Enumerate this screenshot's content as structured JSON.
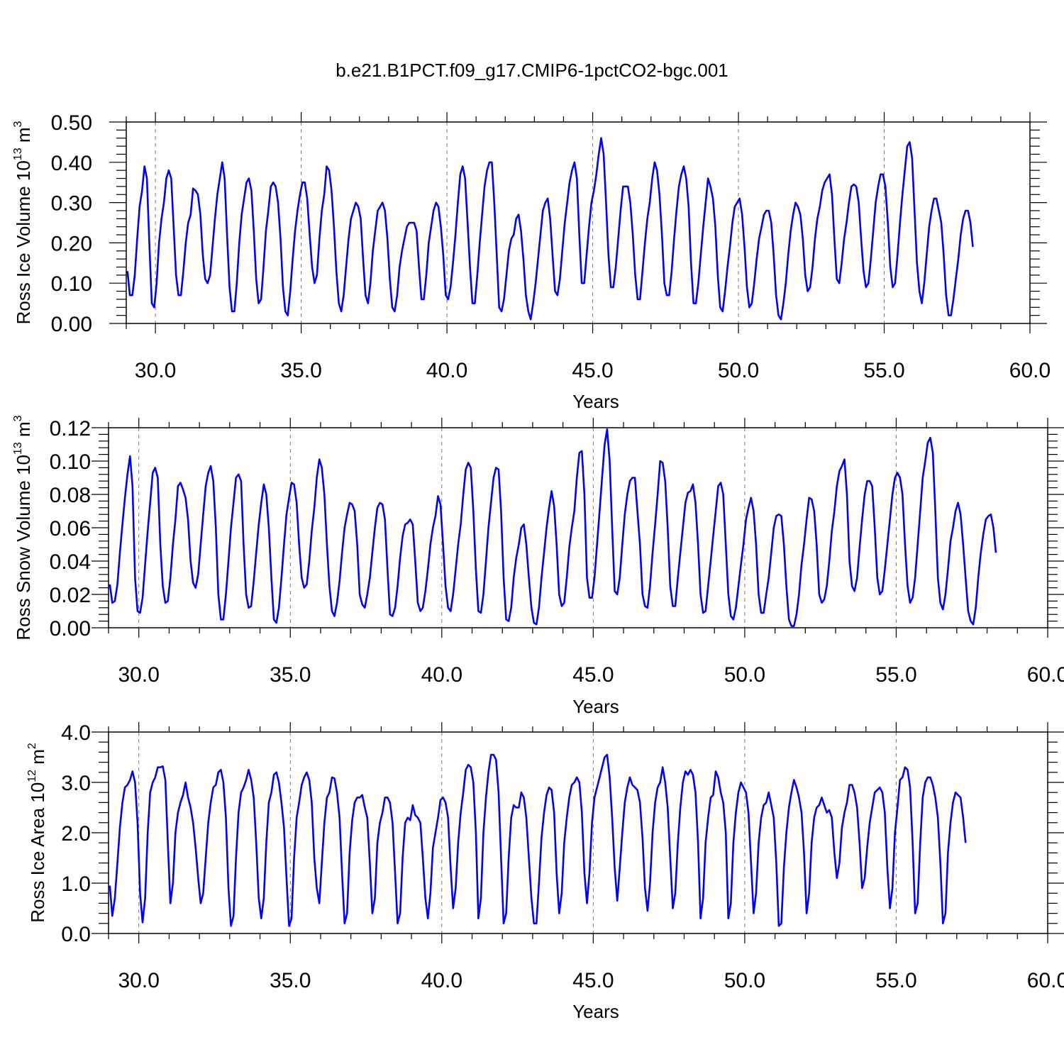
{
  "title": "b.e21.B1PCT.f09_g17.CMIP6-1pctCO2-bgc.001",
  "colors": {
    "series": "#0000ff",
    "vline": "#777777"
  },
  "chart_data": [
    {
      "type": "line",
      "xlabel": "Years",
      "ylabel": {
        "main": "Ross Ice Volume 10",
        "sup": "13",
        "tail": " m",
        "sup2": "3"
      },
      "xlim": [
        29.0,
        60.0
      ],
      "ylim": [
        0.0,
        0.5
      ],
      "xticks": [
        "30.0",
        "35.0",
        "40.0",
        "45.0",
        "50.0",
        "55.0",
        "60.0"
      ],
      "xtick_values": [
        30,
        35,
        40,
        45,
        50,
        55,
        60
      ],
      "yticks": [
        "0.00",
        "0.10",
        "0.20",
        "0.30",
        "0.40",
        "0.50"
      ],
      "ytick_values": [
        0.0,
        0.1,
        0.2,
        0.3,
        0.4,
        0.5
      ],
      "dashed_vlines": [
        30,
        35,
        40,
        45,
        50,
        55
      ],
      "x_start": 29.0417,
      "x_step": 0.083333,
      "values": [
        0.13,
        0.07,
        0.07,
        0.12,
        0.21,
        0.29,
        0.33,
        0.39,
        0.36,
        0.2,
        0.05,
        0.04,
        0.1,
        0.2,
        0.26,
        0.3,
        0.36,
        0.38,
        0.36,
        0.24,
        0.12,
        0.07,
        0.07,
        0.13,
        0.2,
        0.25,
        0.27,
        0.335,
        0.33,
        0.32,
        0.27,
        0.17,
        0.11,
        0.1,
        0.12,
        0.19,
        0.26,
        0.32,
        0.36,
        0.4,
        0.36,
        0.22,
        0.09,
        0.03,
        0.03,
        0.1,
        0.2,
        0.27,
        0.31,
        0.35,
        0.36,
        0.33,
        0.23,
        0.11,
        0.05,
        0.06,
        0.14,
        0.23,
        0.28,
        0.34,
        0.35,
        0.34,
        0.3,
        0.21,
        0.09,
        0.03,
        0.02,
        0.08,
        0.16,
        0.23,
        0.28,
        0.32,
        0.35,
        0.35,
        0.31,
        0.22,
        0.14,
        0.1,
        0.12,
        0.21,
        0.28,
        0.32,
        0.39,
        0.38,
        0.33,
        0.24,
        0.13,
        0.05,
        0.03,
        0.07,
        0.14,
        0.21,
        0.26,
        0.28,
        0.3,
        0.29,
        0.26,
        0.16,
        0.07,
        0.05,
        0.1,
        0.18,
        0.23,
        0.28,
        0.29,
        0.3,
        0.28,
        0.21,
        0.11,
        0.04,
        0.03,
        0.07,
        0.14,
        0.18,
        0.21,
        0.24,
        0.25,
        0.25,
        0.25,
        0.23,
        0.14,
        0.06,
        0.06,
        0.12,
        0.2,
        0.24,
        0.28,
        0.3,
        0.29,
        0.24,
        0.17,
        0.07,
        0.06,
        0.09,
        0.15,
        0.22,
        0.3,
        0.37,
        0.39,
        0.36,
        0.25,
        0.14,
        0.05,
        0.05,
        0.12,
        0.2,
        0.27,
        0.34,
        0.38,
        0.4,
        0.4,
        0.3,
        0.17,
        0.04,
        0.03,
        0.06,
        0.12,
        0.18,
        0.21,
        0.22,
        0.26,
        0.27,
        0.23,
        0.16,
        0.07,
        0.03,
        0.01,
        0.05,
        0.1,
        0.16,
        0.22,
        0.28,
        0.3,
        0.31,
        0.26,
        0.17,
        0.08,
        0.07,
        0.11,
        0.18,
        0.25,
        0.3,
        0.35,
        0.38,
        0.4,
        0.36,
        0.22,
        0.1,
        0.1,
        0.17,
        0.24,
        0.3,
        0.33,
        0.37,
        0.42,
        0.46,
        0.42,
        0.3,
        0.17,
        0.09,
        0.09,
        0.14,
        0.21,
        0.28,
        0.34,
        0.34,
        0.34,
        0.3,
        0.22,
        0.12,
        0.06,
        0.06,
        0.13,
        0.2,
        0.26,
        0.3,
        0.36,
        0.4,
        0.38,
        0.32,
        0.22,
        0.1,
        0.07,
        0.07,
        0.13,
        0.21,
        0.28,
        0.34,
        0.37,
        0.39,
        0.36,
        0.29,
        0.15,
        0.05,
        0.05,
        0.1,
        0.17,
        0.24,
        0.3,
        0.36,
        0.34,
        0.31,
        0.24,
        0.12,
        0.04,
        0.03,
        0.08,
        0.14,
        0.19,
        0.25,
        0.29,
        0.3,
        0.31,
        0.27,
        0.19,
        0.09,
        0.04,
        0.05,
        0.1,
        0.16,
        0.21,
        0.24,
        0.27,
        0.28,
        0.28,
        0.25,
        0.17,
        0.07,
        0.02,
        0.01,
        0.05,
        0.1,
        0.17,
        0.23,
        0.27,
        0.3,
        0.29,
        0.27,
        0.21,
        0.12,
        0.08,
        0.09,
        0.14,
        0.21,
        0.26,
        0.29,
        0.33,
        0.35,
        0.36,
        0.37,
        0.32,
        0.21,
        0.11,
        0.1,
        0.15,
        0.21,
        0.25,
        0.3,
        0.34,
        0.345,
        0.34,
        0.3,
        0.21,
        0.13,
        0.09,
        0.1,
        0.16,
        0.23,
        0.3,
        0.34,
        0.37,
        0.37,
        0.34,
        0.25,
        0.14,
        0.09,
        0.1,
        0.17,
        0.25,
        0.32,
        0.38,
        0.44,
        0.45,
        0.41,
        0.28,
        0.15,
        0.08,
        0.05,
        0.1,
        0.17,
        0.24,
        0.28,
        0.31,
        0.31,
        0.28,
        0.25,
        0.17,
        0.07,
        0.02,
        0.02,
        0.06,
        0.11,
        0.16,
        0.22,
        0.26,
        0.28,
        0.28,
        0.25,
        0.19
      ]
    },
    {
      "type": "line",
      "xlabel": "Years",
      "ylabel": {
        "main": "Ross Snow Volume 10",
        "sup": "13",
        "tail": " m",
        "sup2": "3"
      },
      "xlim": [
        29.0,
        60.0
      ],
      "ylim": [
        0.0,
        0.12
      ],
      "xticks": [
        "30.0",
        "35.0",
        "40.0",
        "45.0",
        "50.0",
        "55.0",
        "60.0"
      ],
      "xtick_values": [
        30,
        35,
        40,
        45,
        50,
        55,
        60
      ],
      "yticks": [
        "0.00",
        "0.02",
        "0.04",
        "0.06",
        "0.08",
        "0.10",
        "0.12"
      ],
      "ytick_values": [
        0.0,
        0.02,
        0.04,
        0.06,
        0.08,
        0.1,
        0.12
      ],
      "dashed_vlines": [
        30,
        35,
        40,
        45,
        50,
        55
      ],
      "x_start": 29.0417,
      "x_step": 0.083333,
      "values": [
        0.026,
        0.015,
        0.016,
        0.026,
        0.045,
        0.062,
        0.078,
        0.092,
        0.103,
        0.085,
        0.03,
        0.01,
        0.009,
        0.018,
        0.038,
        0.058,
        0.075,
        0.093,
        0.096,
        0.09,
        0.05,
        0.025,
        0.015,
        0.016,
        0.03,
        0.05,
        0.065,
        0.085,
        0.087,
        0.083,
        0.078,
        0.065,
        0.04,
        0.027,
        0.024,
        0.032,
        0.05,
        0.068,
        0.085,
        0.093,
        0.097,
        0.088,
        0.06,
        0.02,
        0.005,
        0.005,
        0.02,
        0.04,
        0.06,
        0.075,
        0.09,
        0.092,
        0.088,
        0.05,
        0.02,
        0.012,
        0.013,
        0.028,
        0.045,
        0.062,
        0.075,
        0.086,
        0.08,
        0.06,
        0.03,
        0.005,
        0.003,
        0.012,
        0.03,
        0.05,
        0.068,
        0.078,
        0.087,
        0.086,
        0.075,
        0.05,
        0.03,
        0.024,
        0.026,
        0.04,
        0.058,
        0.072,
        0.09,
        0.101,
        0.096,
        0.08,
        0.05,
        0.025,
        0.01,
        0.007,
        0.015,
        0.028,
        0.045,
        0.06,
        0.068,
        0.075,
        0.074,
        0.07,
        0.05,
        0.02,
        0.014,
        0.012,
        0.02,
        0.03,
        0.045,
        0.06,
        0.072,
        0.075,
        0.074,
        0.065,
        0.035,
        0.008,
        0.007,
        0.012,
        0.025,
        0.042,
        0.055,
        0.062,
        0.063,
        0.065,
        0.062,
        0.04,
        0.015,
        0.01,
        0.012,
        0.022,
        0.035,
        0.05,
        0.06,
        0.067,
        0.079,
        0.074,
        0.05,
        0.025,
        0.012,
        0.01,
        0.02,
        0.035,
        0.05,
        0.062,
        0.08,
        0.095,
        0.099,
        0.096,
        0.07,
        0.035,
        0.01,
        0.009,
        0.02,
        0.04,
        0.06,
        0.075,
        0.09,
        0.096,
        0.095,
        0.07,
        0.03,
        0.005,
        0.004,
        0.012,
        0.03,
        0.042,
        0.05,
        0.06,
        0.062,
        0.05,
        0.03,
        0.012,
        0.003,
        0.002,
        0.012,
        0.03,
        0.045,
        0.06,
        0.072,
        0.082,
        0.073,
        0.05,
        0.02,
        0.013,
        0.015,
        0.03,
        0.048,
        0.06,
        0.07,
        0.09,
        0.105,
        0.106,
        0.08,
        0.03,
        0.018,
        0.018,
        0.03,
        0.05,
        0.07,
        0.09,
        0.11,
        0.119,
        0.1,
        0.06,
        0.022,
        0.02,
        0.03,
        0.05,
        0.068,
        0.08,
        0.088,
        0.09,
        0.09,
        0.07,
        0.05,
        0.02,
        0.013,
        0.012,
        0.025,
        0.045,
        0.062,
        0.08,
        0.1,
        0.099,
        0.088,
        0.06,
        0.025,
        0.013,
        0.013,
        0.03,
        0.045,
        0.06,
        0.075,
        0.081,
        0.082,
        0.086,
        0.075,
        0.05,
        0.02,
        0.009,
        0.01,
        0.025,
        0.04,
        0.055,
        0.07,
        0.085,
        0.087,
        0.08,
        0.05,
        0.02,
        0.007,
        0.005,
        0.012,
        0.025,
        0.038,
        0.05,
        0.065,
        0.072,
        0.078,
        0.07,
        0.05,
        0.02,
        0.009,
        0.009,
        0.02,
        0.03,
        0.045,
        0.06,
        0.067,
        0.068,
        0.067,
        0.05,
        0.025,
        0.005,
        0.001,
        0.001,
        0.008,
        0.02,
        0.038,
        0.05,
        0.065,
        0.078,
        0.077,
        0.07,
        0.05,
        0.02,
        0.015,
        0.017,
        0.025,
        0.04,
        0.058,
        0.07,
        0.085,
        0.094,
        0.097,
        0.101,
        0.08,
        0.04,
        0.025,
        0.022,
        0.03,
        0.048,
        0.065,
        0.08,
        0.088,
        0.088,
        0.085,
        0.06,
        0.03,
        0.02,
        0.022,
        0.035,
        0.05,
        0.065,
        0.08,
        0.09,
        0.093,
        0.09,
        0.08,
        0.05,
        0.025,
        0.015,
        0.018,
        0.03,
        0.05,
        0.07,
        0.09,
        0.1,
        0.111,
        0.114,
        0.105,
        0.07,
        0.03,
        0.015,
        0.011,
        0.02,
        0.035,
        0.052,
        0.06,
        0.07,
        0.075,
        0.068,
        0.05,
        0.03,
        0.01,
        0.004,
        0.002,
        0.012,
        0.03,
        0.045,
        0.056,
        0.065,
        0.067,
        0.068,
        0.06,
        0.045
      ]
    },
    {
      "type": "line",
      "xlabel": "Years",
      "ylabel": {
        "main": "Ross Ice Area 10",
        "sup": "12",
        "tail": " m",
        "sup2": "2"
      },
      "xlim": [
        29.0,
        60.0
      ],
      "ylim": [
        0.0,
        4.0
      ],
      "xticks": [
        "30.0",
        "35.0",
        "40.0",
        "45.0",
        "50.0",
        "55.0",
        "60.0"
      ],
      "xtick_values": [
        30,
        35,
        40,
        45,
        50,
        55,
        60
      ],
      "yticks": [
        "0.0",
        "1.0",
        "2.0",
        "3.0",
        "4.0"
      ],
      "ytick_values": [
        0.0,
        1.0,
        2.0,
        3.0,
        4.0
      ],
      "dashed_vlines": [
        30,
        35,
        40,
        45,
        50,
        55
      ],
      "x_start": 29.0417,
      "x_step": 0.083333,
      "values": [
        0.95,
        0.35,
        0.7,
        1.4,
        2.1,
        2.6,
        2.9,
        2.95,
        3.05,
        3.22,
        3.0,
        2.2,
        0.8,
        0.22,
        0.7,
        2.0,
        2.8,
        3.0,
        3.1,
        3.3,
        3.3,
        3.32,
        3.05,
        1.8,
        0.6,
        1.0,
        2.0,
        2.4,
        2.6,
        2.75,
        3.0,
        2.7,
        2.5,
        2.2,
        1.7,
        1.1,
        0.6,
        0.8,
        1.5,
        2.2,
        2.6,
        2.9,
        2.95,
        3.2,
        3.25,
        3.0,
        2.3,
        0.9,
        0.15,
        0.35,
        1.5,
        2.4,
        2.8,
        2.9,
        3.05,
        3.25,
        3.05,
        2.7,
        1.8,
        0.7,
        0.3,
        0.7,
        1.8,
        2.6,
        2.8,
        3.15,
        3.2,
        3.0,
        2.6,
        2.1,
        1.1,
        0.15,
        0.3,
        1.5,
        2.3,
        2.6,
        2.95,
        3.1,
        3.2,
        3.05,
        2.6,
        1.5,
        0.9,
        0.6,
        1.4,
        2.2,
        2.7,
        2.8,
        3.1,
        3.08,
        2.8,
        2.3,
        1.2,
        0.2,
        0.4,
        1.6,
        2.25,
        2.6,
        2.7,
        2.7,
        2.75,
        2.5,
        2.3,
        1.4,
        0.4,
        0.7,
        1.8,
        2.2,
        2.4,
        2.7,
        2.7,
        2.6,
        2.2,
        1.2,
        0.2,
        0.4,
        1.5,
        2.2,
        2.3,
        2.25,
        2.55,
        2.35,
        2.3,
        2.2,
        1.5,
        0.7,
        0.3,
        0.8,
        1.7,
        2.0,
        2.3,
        2.65,
        2.7,
        2.6,
        2.3,
        1.3,
        0.5,
        0.9,
        1.8,
        2.4,
        2.8,
        3.25,
        3.35,
        3.3,
        3.0,
        2.0,
        0.3,
        0.7,
        2.0,
        2.7,
        3.2,
        3.55,
        3.55,
        3.45,
        2.8,
        1.5,
        0.2,
        0.4,
        1.5,
        2.3,
        2.55,
        2.5,
        2.5,
        2.8,
        2.7,
        2.3,
        1.5,
        0.7,
        0.2,
        0.2,
        1.0,
        1.9,
        2.4,
        2.75,
        2.9,
        2.85,
        2.4,
        1.2,
        0.4,
        0.8,
        1.8,
        2.3,
        2.7,
        2.95,
        3.0,
        3.1,
        3.0,
        2.4,
        1.2,
        0.6,
        1.2,
        2.2,
        2.7,
        2.9,
        3.1,
        3.3,
        3.5,
        3.55,
        3.1,
        2.3,
        1.3,
        0.65,
        1.3,
        2.0,
        2.6,
        2.9,
        3.1,
        2.95,
        2.9,
        2.85,
        2.6,
        1.9,
        0.9,
        0.45,
        1.0,
        2.0,
        2.6,
        2.9,
        3.0,
        3.3,
        3.0,
        2.5,
        1.5,
        0.5,
        0.8,
        1.8,
        2.5,
        3.0,
        3.22,
        3.15,
        3.25,
        3.15,
        2.8,
        1.8,
        0.3,
        0.7,
        1.8,
        2.3,
        2.7,
        2.75,
        3.22,
        3.1,
        2.8,
        2.6,
        2.0,
        0.3,
        0.6,
        1.8,
        2.4,
        2.8,
        3.0,
        2.9,
        2.8,
        2.4,
        1.4,
        0.4,
        0.8,
        1.8,
        2.3,
        2.55,
        2.6,
        2.8,
        2.55,
        2.3,
        1.4,
        0.15,
        0.2,
        1.3,
        2.0,
        2.5,
        2.8,
        3.05,
        2.9,
        2.7,
        2.4,
        1.6,
        0.4,
        0.8,
        1.8,
        2.3,
        2.5,
        2.55,
        2.7,
        2.55,
        2.4,
        2.45,
        2.3,
        1.6,
        1.1,
        1.4,
        2.1,
        2.4,
        2.6,
        2.95,
        2.95,
        2.8,
        2.5,
        1.8,
        0.9,
        1.1,
        1.7,
        2.2,
        2.5,
        2.8,
        2.85,
        2.9,
        2.8,
        2.4,
        1.3,
        0.5,
        0.9,
        2.0,
        2.5,
        3.05,
        3.1,
        3.3,
        3.25,
        2.9,
        1.8,
        0.4,
        0.6,
        1.8,
        2.7,
        3.0,
        3.1,
        3.1,
        2.95,
        2.7,
        2.3,
        1.4,
        0.2,
        0.4,
        1.6,
        2.2,
        2.6,
        2.8,
        2.75,
        2.7,
        2.3,
        1.8
      ]
    }
  ]
}
